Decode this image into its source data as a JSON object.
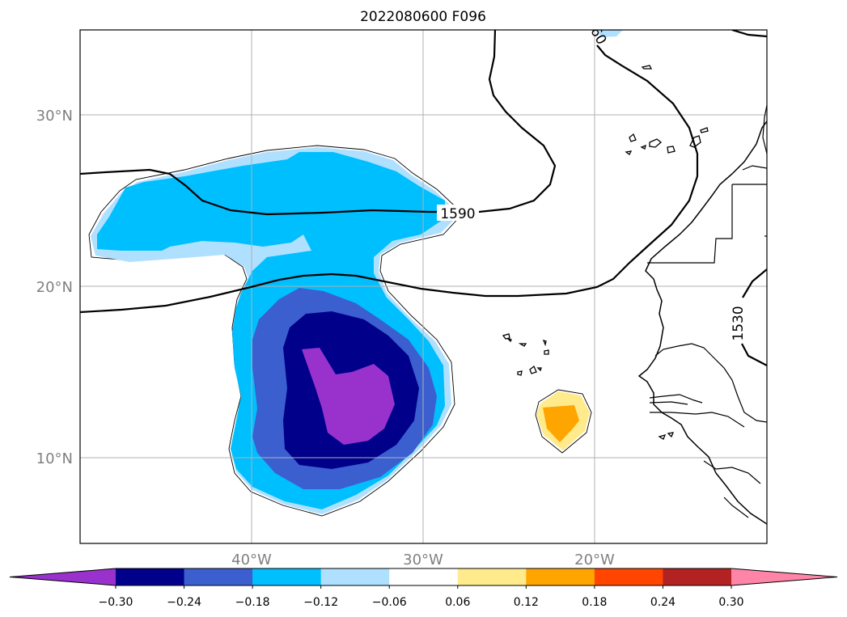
{
  "title": "2022080600 F096",
  "lat_labels": [
    "30°N",
    "20°N",
    "10°N"
  ],
  "lon_labels": [
    "40°W",
    "30°W",
    "20°W"
  ],
  "contour_labels": [
    "1590",
    "1530",
    "60"
  ],
  "colorbar": {
    "ticks": [
      "−0.30",
      "−0.24",
      "−0.18",
      "−0.12",
      "−0.06",
      "0.06",
      "0.12",
      "0.18",
      "0.24",
      "0.30"
    ],
    "colors": [
      "#9932cc",
      "#00008b",
      "#3c5fd0",
      "#00bfff",
      "#b0e0ff",
      "#ffffff",
      "#ffeb8c",
      "#ffa500",
      "#ff4500",
      "#b22222",
      "#ff85a8"
    ],
    "extend": "both"
  },
  "map": {
    "extent": {
      "lon_min": -50,
      "lon_max": -10,
      "lat_min": 5,
      "lat_max": 35
    },
    "gridlines": true,
    "field_units": "",
    "neg_max_value": "−0.30 or lower",
    "pos_max_value": "0.12–0.18"
  }
}
